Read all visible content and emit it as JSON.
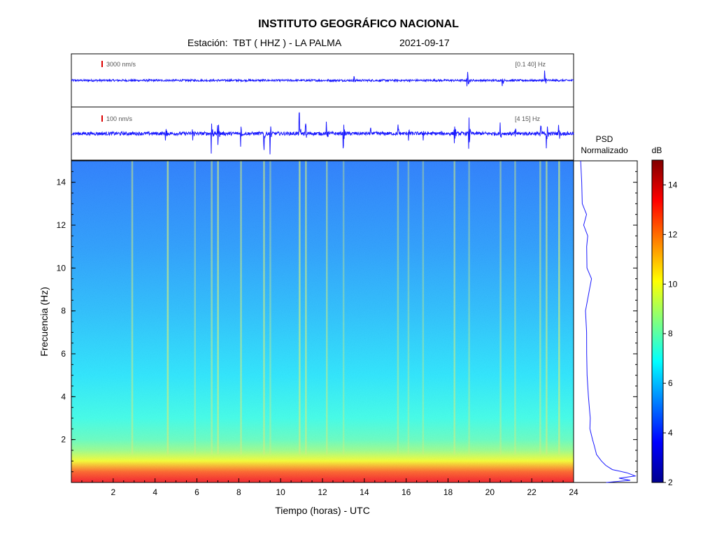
{
  "header": {
    "title": "INSTITUTO GEOGRÁFICO NACIONAL",
    "station_label": "Estación:  TBT ( HHZ ) - LA PALMA",
    "date": "2021-09-17"
  },
  "colors": {
    "trace": "#1a1aff",
    "scale_bar": "#dd0000",
    "axis": "#000000",
    "tag_text": "#555555"
  },
  "chart_data": [
    {
      "type": "line",
      "panel": "seismogram-broadband",
      "scale_label": "3000 nm/s",
      "band_label": "[0.1 40] Hz",
      "xlim": [
        0,
        24
      ],
      "events": [
        {
          "t": 13.5,
          "amp": 0.25
        },
        {
          "t": 18.9,
          "amp": 0.95
        },
        {
          "t": 20.6,
          "amp": 0.35
        },
        {
          "t": 22.6,
          "amp": 0.8
        }
      ]
    },
    {
      "type": "line",
      "panel": "seismogram-filtered",
      "scale_label": "100 nm/s",
      "band_label": "[4 15] Hz",
      "xlim": [
        0,
        24
      ],
      "events": [
        {
          "t": 4.5,
          "amp": 0.45
        },
        {
          "t": 5.8,
          "amp": 0.35
        },
        {
          "t": 6.7,
          "amp": 1.0
        },
        {
          "t": 7.0,
          "amp": 0.95
        },
        {
          "t": 8.1,
          "amp": 0.55
        },
        {
          "t": 9.2,
          "amp": 1.0
        },
        {
          "t": 9.5,
          "amp": 0.85
        },
        {
          "t": 10.9,
          "amp": 0.9
        },
        {
          "t": 11.2,
          "amp": 0.5
        },
        {
          "t": 12.2,
          "amp": 0.45
        },
        {
          "t": 13.0,
          "amp": 0.7
        },
        {
          "t": 14.3,
          "amp": 0.3
        },
        {
          "t": 15.6,
          "amp": 0.5
        },
        {
          "t": 16.1,
          "amp": 0.45
        },
        {
          "t": 16.8,
          "amp": 0.4
        },
        {
          "t": 18.3,
          "amp": 0.5
        },
        {
          "t": 19.0,
          "amp": 0.85
        },
        {
          "t": 20.5,
          "amp": 0.55
        },
        {
          "t": 21.2,
          "amp": 0.45
        },
        {
          "t": 22.4,
          "amp": 1.0
        },
        {
          "t": 22.7,
          "amp": 0.95
        },
        {
          "t": 23.3,
          "amp": 0.4
        }
      ]
    },
    {
      "type": "heatmap",
      "panel": "spectrogram",
      "xlabel": "Tiempo (horas) - UTC",
      "ylabel": "Frecuencia  (Hz)",
      "xlim": [
        0,
        24
      ],
      "ylim": [
        0,
        15
      ],
      "xticks": [
        2,
        4,
        6,
        8,
        10,
        12,
        14,
        16,
        18,
        20,
        22,
        24
      ],
      "yticks": [
        2,
        4,
        6,
        8,
        10,
        12,
        14
      ],
      "colormap": "jet",
      "vertical_streaks_hours": [
        2.9,
        4.6,
        5.9,
        6.7,
        7.0,
        8.1,
        9.2,
        9.5,
        10.9,
        11.2,
        12.2,
        13.0,
        15.6,
        16.1,
        16.8,
        18.3,
        19.0,
        20.5,
        21.2,
        22.4,
        22.7,
        23.3
      ],
      "level_profile": [
        {
          "f": 0.1,
          "db": 13.5
        },
        {
          "f": 0.5,
          "db": 12.5
        },
        {
          "f": 1.0,
          "db": 10.0
        },
        {
          "f": 1.5,
          "db": 8.6
        },
        {
          "f": 2.0,
          "db": 7.8
        },
        {
          "f": 3.0,
          "db": 7.2
        },
        {
          "f": 5.0,
          "db": 6.5
        },
        {
          "f": 8.0,
          "db": 5.9
        },
        {
          "f": 11.0,
          "db": 5.4
        },
        {
          "f": 15.0,
          "db": 4.9
        }
      ]
    },
    {
      "type": "line",
      "panel": "psd",
      "title": "PSD\nNormalizado",
      "ylim": [
        0,
        15
      ],
      "points": [
        {
          "f": 0.0,
          "v": 0.52
        },
        {
          "f": 0.1,
          "v": 0.9
        },
        {
          "f": 0.2,
          "v": 0.72
        },
        {
          "f": 0.3,
          "v": 0.98
        },
        {
          "f": 0.45,
          "v": 0.85
        },
        {
          "f": 0.6,
          "v": 0.62
        },
        {
          "f": 0.8,
          "v": 0.5
        },
        {
          "f": 1.0,
          "v": 0.43
        },
        {
          "f": 1.3,
          "v": 0.36
        },
        {
          "f": 1.7,
          "v": 0.31
        },
        {
          "f": 2.0,
          "v": 0.28
        },
        {
          "f": 2.5,
          "v": 0.25
        },
        {
          "f": 3.0,
          "v": 0.24
        },
        {
          "f": 4.0,
          "v": 0.22
        },
        {
          "f": 5.0,
          "v": 0.21
        },
        {
          "f": 6.0,
          "v": 0.2
        },
        {
          "f": 7.0,
          "v": 0.19
        },
        {
          "f": 8.0,
          "v": 0.17
        },
        {
          "f": 9.0,
          "v": 0.23
        },
        {
          "f": 9.5,
          "v": 0.26
        },
        {
          "f": 10.0,
          "v": 0.2
        },
        {
          "f": 11.0,
          "v": 0.2
        },
        {
          "f": 11.5,
          "v": 0.2
        },
        {
          "f": 12.0,
          "v": 0.15
        },
        {
          "f": 12.5,
          "v": 0.19
        },
        {
          "f": 13.0,
          "v": 0.11
        },
        {
          "f": 14.0,
          "v": 0.11
        },
        {
          "f": 15.0,
          "v": 0.1
        }
      ]
    },
    {
      "type": "heatmap",
      "panel": "colorbar",
      "title": "dB",
      "ylim": [
        2,
        15
      ],
      "ticks": [
        2,
        4,
        6,
        8,
        10,
        12,
        14
      ]
    }
  ]
}
